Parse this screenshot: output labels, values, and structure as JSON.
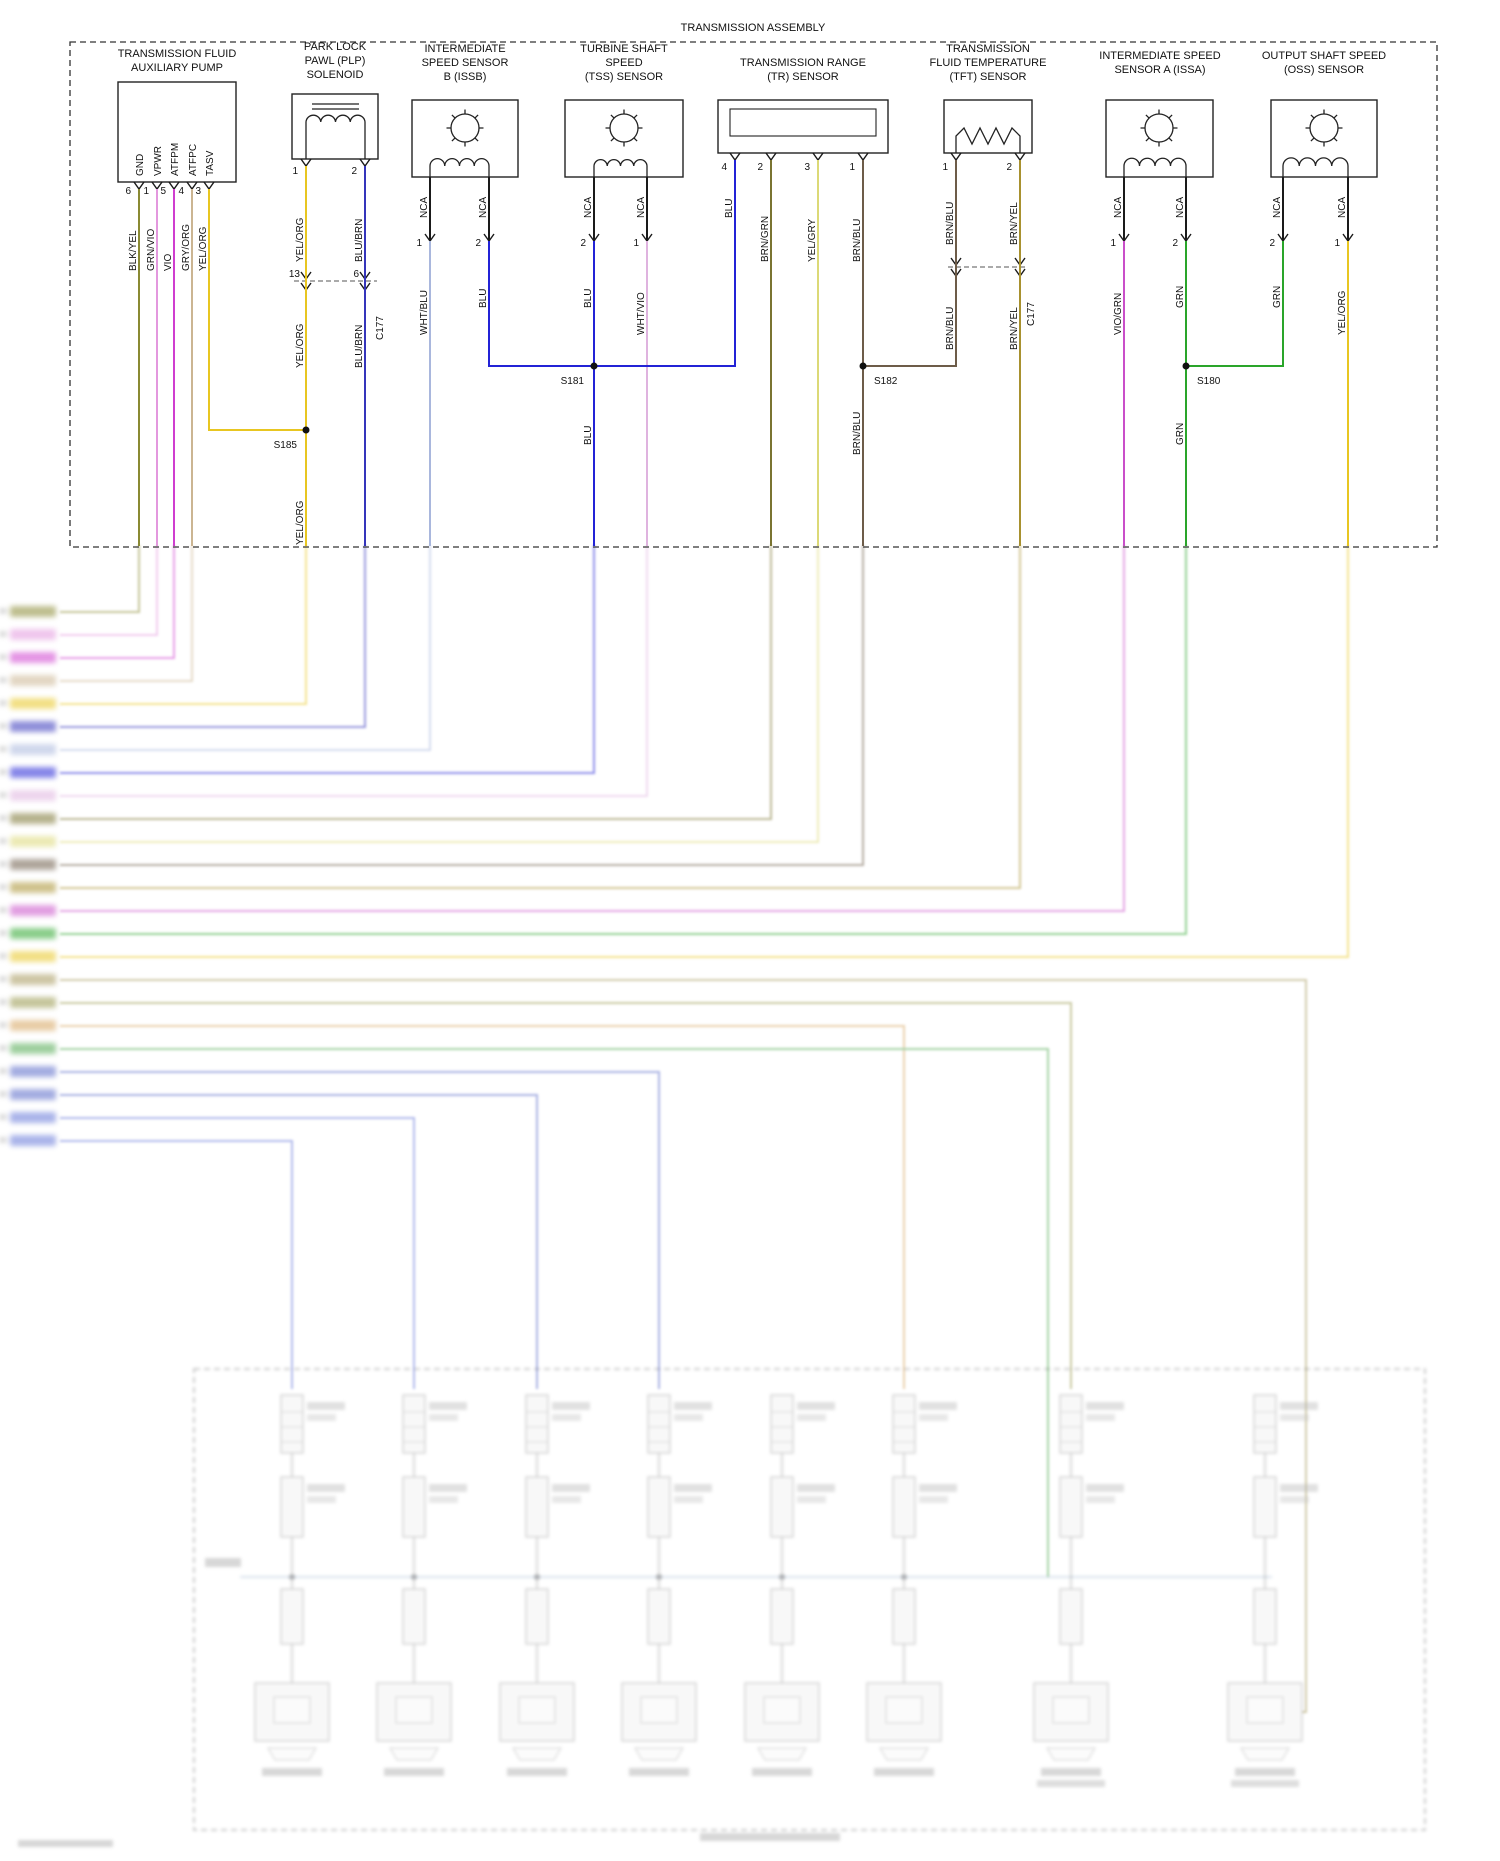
{
  "assembly": {
    "title": "TRANSMISSION ASSEMBLY"
  },
  "colors": {
    "black": "#1a1a1a",
    "blk_yel": "#8a8a33",
    "grn_vio": "#e398de",
    "vio": "#cf3ecf",
    "gry_org": "#cbb592",
    "yel_org": "#e8c621",
    "blu_brn": "#3535bb",
    "wht_blu": "#a9b7dd",
    "blu": "#2323d6",
    "wht_vio": "#dfb3df",
    "brn_grn": "#7a7431",
    "yel_gry": "#dcd977",
    "brn_blu": "#6d5c49",
    "brn_yel": "#a8912f",
    "vio_grn": "#c94fc9",
    "grn": "#2aa52a"
  },
  "connectors": {
    "c177": "C177"
  },
  "splices": {
    "s185": "S185",
    "s181": "S181",
    "s182": "S182",
    "s180": "S180"
  },
  "pump": {
    "title1": "TRANSMISSION FLUID",
    "title2": "AUXILIARY PUMP",
    "signals": [
      "GND",
      "VPWR",
      "ATFPM",
      "ATFPC",
      "TASV"
    ],
    "pins": [
      "6",
      "1",
      "5",
      "4",
      "3"
    ],
    "wires": [
      "BLK/YEL",
      "GRN/VIO",
      "VIO",
      "GRY/ORG",
      "YEL/ORG"
    ]
  },
  "plp": {
    "title1": "PARK LOCK",
    "title2": "PAWL (PLP)",
    "title3": "SOLENOID",
    "pin1": "1",
    "pin2": "2",
    "wire1": "YEL/ORG",
    "wire2": "BLU/BRN",
    "c177_pin1": "13",
    "c177_pin2": "6",
    "wire1b": "YEL/ORG",
    "wire2b": "BLU/BRN",
    "splice_wire": "YEL/ORG"
  },
  "issb": {
    "title1": "INTERMEDIATE",
    "title2": "SPEED SENSOR",
    "title3": "B (ISSB)",
    "nca": "NCA",
    "pin1": "1",
    "pin2": "2",
    "wire1": "WHT/BLU",
    "wire2": "BLU"
  },
  "tss": {
    "title1": "TURBINE SHAFT",
    "title2": "SPEED",
    "title3": "(TSS) SENSOR",
    "nca": "NCA",
    "pin1": "2",
    "pin2": "1",
    "wire1": "BLU",
    "wire2": "WHT/VIO",
    "below_wire": "BLU"
  },
  "tr": {
    "title1": "TRANSMISSION RANGE",
    "title2": "(TR) SENSOR",
    "pins": [
      "4",
      "2",
      "3",
      "1"
    ],
    "wires": [
      "BLU",
      "BRN/GRN",
      "YEL/GRY",
      "BRN/BLU"
    ],
    "below_wire": "BRN/BLU"
  },
  "tft": {
    "title1": "TRANSMISSION",
    "title2": "FLUID TEMPERATURE",
    "title3": "(TFT) SENSOR",
    "pin1": "1",
    "pin2": "2",
    "wire1": "BRN/BLU",
    "wire2": "BRN/YEL",
    "wire1b": "BRN/BLU",
    "wire2b": "BRN/YEL"
  },
  "issa": {
    "title1": "INTERMEDIATE SPEED",
    "title2": "SENSOR A (ISSA)",
    "nca": "NCA",
    "pin1": "1",
    "pin2": "2",
    "wire1": "VIO/GRN",
    "wire2": "GRN",
    "below_wire": "GRN"
  },
  "oss": {
    "title1": "OUTPUT SHAFT SPEED",
    "title2": "(OSS) SENSOR",
    "nca": "NCA",
    "pin1": "2",
    "pin2": "1",
    "wire1": "GRN",
    "wire2": "YEL/ORG"
  }
}
